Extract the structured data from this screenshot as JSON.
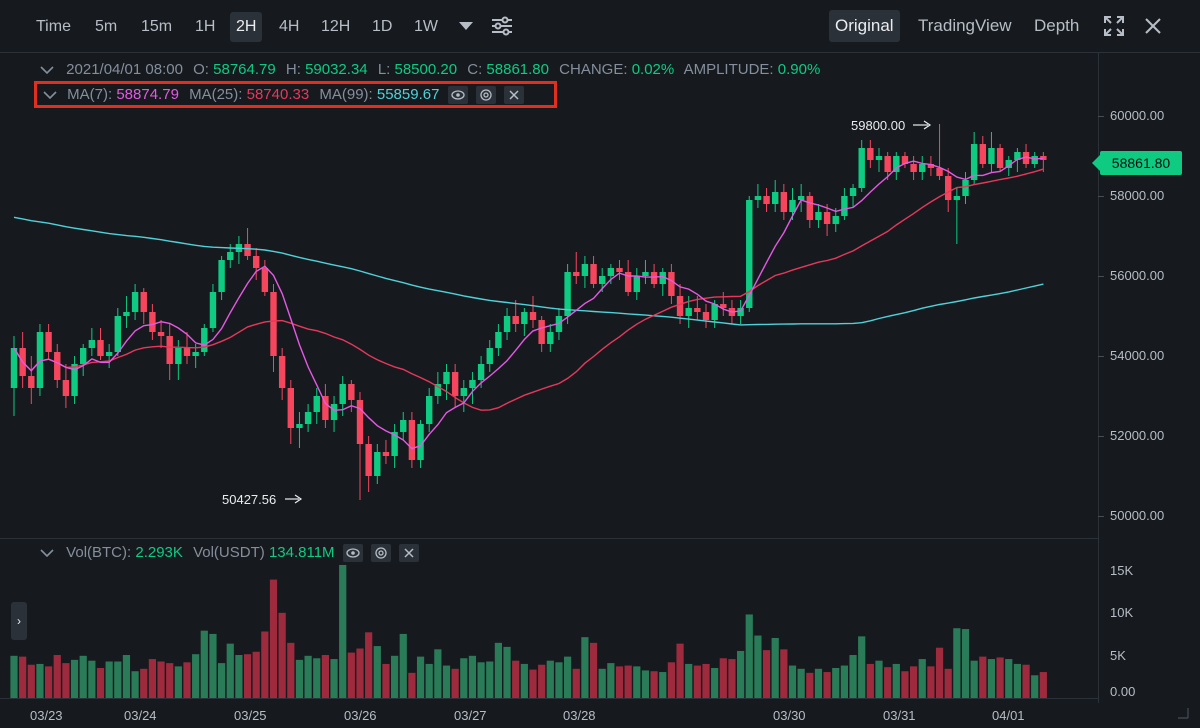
{
  "toolbar": {
    "timeframes": [
      "Time",
      "5m",
      "15m",
      "1H",
      "2H",
      "4H",
      "12H",
      "1D",
      "1W"
    ],
    "active_timeframe": "2H",
    "views": [
      "Original",
      "TradingView",
      "Depth"
    ],
    "active_view": "Original"
  },
  "ohlc": {
    "date": "2021/04/01 08:00",
    "open_label": "O:",
    "open": "58764.79",
    "high_label": "H:",
    "high": "59032.34",
    "low_label": "L:",
    "low": "58500.20",
    "close_label": "C:",
    "close": "58861.80",
    "change_label": "CHANGE:",
    "change": "0.02%",
    "amplitude_label": "AMPLITUDE:",
    "amplitude": "0.90%"
  },
  "ma": {
    "ma7_label": "MA(7):",
    "ma7": "58874.79",
    "ma25_label": "MA(25):",
    "ma25": "58740.33",
    "ma99_label": "MA(99):",
    "ma99": "55859.67"
  },
  "volume": {
    "btc_label": "Vol(BTC):",
    "btc": "2.293K",
    "usdt_label": "Vol(USDT)",
    "usdt": "134.811M"
  },
  "price_axis": [
    "60000.00",
    "58000.00",
    "56000.00",
    "54000.00",
    "52000.00",
    "50000.00"
  ],
  "volume_axis": [
    "15K",
    "10K",
    "5K",
    "0.00"
  ],
  "date_axis": [
    "03/23",
    "03/24",
    "03/25",
    "03/26",
    "03/27",
    "03/28",
    "03/30",
    "03/31",
    "04/01"
  ],
  "last_price": "58861.80",
  "annotations": {
    "high": "59800.00",
    "low": "50427.56"
  },
  "colors": {
    "up": "#0ecb81",
    "down": "#f6465d",
    "ma7": "#e658e4",
    "ma25": "#e8375a",
    "ma99": "#4fd1d9",
    "vol_up": "#2a7c59",
    "vol_down": "#9e2a3e"
  },
  "chart_data": {
    "type": "candlestick",
    "ylim": [
      49500,
      60500
    ],
    "vol_ylim": [
      0,
      18000
    ],
    "candles": [
      [
        53200,
        54500,
        52500,
        54200
      ],
      [
        54200,
        54600,
        53200,
        53500
      ],
      [
        53500,
        54000,
        52800,
        53200
      ],
      [
        53200,
        54800,
        53000,
        54600
      ],
      [
        54600,
        54800,
        53900,
        54100
      ],
      [
        54100,
        54300,
        53200,
        53400
      ],
      [
        53400,
        53800,
        52700,
        53000
      ],
      [
        53000,
        54000,
        52800,
        53800
      ],
      [
        53800,
        54300,
        53500,
        54200
      ],
      [
        54200,
        54700,
        54000,
        54400
      ],
      [
        54400,
        54700,
        53900,
        54000
      ],
      [
        54000,
        54300,
        53700,
        54100
      ],
      [
        54100,
        55200,
        54000,
        55000
      ],
      [
        55000,
        55500,
        54700,
        55100
      ],
      [
        55100,
        55800,
        54900,
        55600
      ],
      [
        55600,
        55700,
        54800,
        55100
      ],
      [
        55100,
        55300,
        54400,
        54600
      ],
      [
        54600,
        54900,
        54200,
        54500
      ],
      [
        54500,
        54800,
        53400,
        53800
      ],
      [
        53800,
        54400,
        53400,
        54200
      ],
      [
        54200,
        54600,
        53800,
        54000
      ],
      [
        54000,
        54300,
        53700,
        54100
      ],
      [
        54100,
        54800,
        54000,
        54700
      ],
      [
        54700,
        55800,
        54600,
        55600
      ],
      [
        55600,
        56500,
        55400,
        56400
      ],
      [
        56400,
        56800,
        56200,
        56600
      ],
      [
        56600,
        57000,
        56300,
        56800
      ],
      [
        56800,
        57200,
        56400,
        56500
      ],
      [
        56500,
        56700,
        55900,
        56200
      ],
      [
        56200,
        56400,
        55500,
        55600
      ],
      [
        55600,
        55800,
        53600,
        54000
      ],
      [
        54000,
        54200,
        52900,
        53200
      ],
      [
        53200,
        53400,
        51800,
        52200
      ],
      [
        52200,
        52600,
        51700,
        52300
      ],
      [
        52300,
        52800,
        52100,
        52600
      ],
      [
        52600,
        53200,
        52300,
        53000
      ],
      [
        53000,
        53300,
        52200,
        52400
      ],
      [
        52400,
        53000,
        52100,
        52800
      ],
      [
        52800,
        53500,
        52500,
        53300
      ],
      [
        53300,
        53400,
        52600,
        52900
      ],
      [
        52900,
        53100,
        50400,
        51800
      ],
      [
        51800,
        52000,
        50600,
        51000
      ],
      [
        51000,
        51800,
        50800,
        51600
      ],
      [
        51600,
        51900,
        51300,
        51500
      ],
      [
        51500,
        52300,
        51200,
        52100
      ],
      [
        52100,
        52600,
        51900,
        52400
      ],
      [
        52400,
        52600,
        51200,
        51400
      ],
      [
        51400,
        52400,
        51200,
        52300
      ],
      [
        52300,
        53200,
        52100,
        53000
      ],
      [
        53000,
        53600,
        52800,
        53300
      ],
      [
        53300,
        53800,
        52900,
        53600
      ],
      [
        53600,
        53800,
        52700,
        53000
      ],
      [
        53000,
        53400,
        52600,
        53200
      ],
      [
        53200,
        53600,
        52800,
        53400
      ],
      [
        53400,
        54000,
        53200,
        53800
      ],
      [
        53800,
        54400,
        53600,
        54200
      ],
      [
        54200,
        54800,
        54000,
        54600
      ],
      [
        54600,
        55200,
        54400,
        55000
      ],
      [
        55000,
        55400,
        54600,
        54800
      ],
      [
        54800,
        55200,
        54500,
        55100
      ],
      [
        55100,
        55500,
        54700,
        54900
      ],
      [
        54900,
        55000,
        54100,
        54300
      ],
      [
        54300,
        54800,
        54100,
        54600
      ],
      [
        54600,
        55200,
        54400,
        55000
      ],
      [
        55000,
        56300,
        54800,
        56100
      ],
      [
        56100,
        56600,
        55800,
        56000
      ],
      [
        56000,
        56500,
        55700,
        56300
      ],
      [
        56300,
        56500,
        55700,
        55800
      ],
      [
        55800,
        56200,
        55600,
        56000
      ],
      [
        56000,
        56300,
        55800,
        56200
      ],
      [
        56200,
        56400,
        55900,
        56100
      ],
      [
        56100,
        56400,
        55500,
        55600
      ],
      [
        55600,
        56200,
        55400,
        56000
      ],
      [
        56000,
        56400,
        55800,
        56100
      ],
      [
        56100,
        56300,
        55700,
        55800
      ],
      [
        55800,
        56200,
        55500,
        56100
      ],
      [
        56100,
        56300,
        55300,
        55500
      ],
      [
        55500,
        55800,
        54800,
        55000
      ],
      [
        55000,
        55500,
        54700,
        55200
      ],
      [
        55200,
        55500,
        54900,
        55100
      ],
      [
        55100,
        55300,
        54700,
        54900
      ],
      [
        54900,
        55400,
        54700,
        55300
      ],
      [
        55300,
        55600,
        55000,
        55200
      ],
      [
        55200,
        55400,
        54800,
        55000
      ],
      [
        55000,
        55400,
        54800,
        55200
      ],
      [
        55200,
        58000,
        55100,
        57900
      ],
      [
        57900,
        58300,
        57700,
        58000
      ],
      [
        58000,
        58200,
        57600,
        57800
      ],
      [
        57800,
        58400,
        57600,
        58100
      ],
      [
        58100,
        58300,
        57400,
        57600
      ],
      [
        57600,
        58200,
        57400,
        57900
      ],
      [
        57900,
        58300,
        57600,
        58000
      ],
      [
        58000,
        58100,
        57200,
        57400
      ],
      [
        57400,
        57800,
        57200,
        57600
      ],
      [
        57600,
        57800,
        57000,
        57300
      ],
      [
        57300,
        57700,
        57100,
        57500
      ],
      [
        57500,
        58200,
        57400,
        58000
      ],
      [
        58000,
        58300,
        57700,
        58200
      ],
      [
        58200,
        59400,
        58100,
        59200
      ],
      [
        59200,
        59400,
        58700,
        58900
      ],
      [
        58900,
        59200,
        58600,
        59000
      ],
      [
        59000,
        59100,
        58400,
        58600
      ],
      [
        58600,
        59100,
        58400,
        59000
      ],
      [
        59000,
        59100,
        58700,
        58800
      ],
      [
        58800,
        59000,
        58400,
        58600
      ],
      [
        58600,
        59000,
        58400,
        58800
      ],
      [
        58800,
        59000,
        58500,
        58700
      ],
      [
        58700,
        59800,
        58400,
        58500
      ],
      [
        58500,
        58700,
        57600,
        57900
      ],
      [
        57900,
        58200,
        56800,
        58000
      ],
      [
        58000,
        58600,
        57800,
        58400
      ],
      [
        58400,
        59600,
        58300,
        59300
      ],
      [
        59300,
        59500,
        58700,
        58800
      ],
      [
        58800,
        59600,
        58600,
        59200
      ],
      [
        59200,
        59300,
        58600,
        58700
      ],
      [
        58700,
        59000,
        58500,
        58900
      ],
      [
        58900,
        59200,
        58600,
        59100
      ],
      [
        59100,
        59300,
        58700,
        58800
      ],
      [
        58800,
        59100,
        58700,
        59000
      ],
      [
        59000,
        59100,
        58600,
        58900
      ]
    ],
    "volumes": [
      5200,
      5100,
      4100,
      4200,
      3900,
      5300,
      4300,
      4700,
      5200,
      4600,
      3700,
      4500,
      4500,
      5300,
      3300,
      3600,
      4800,
      4500,
      4300,
      3900,
      4400,
      5400,
      8300,
      7900,
      4300,
      6700,
      5300,
      5400,
      5700,
      8200,
      14600,
      10500,
      6800,
      4700,
      5200,
      4900,
      5300,
      4800,
      16400,
      5600,
      6100,
      8100,
      6400,
      4200,
      5200,
      7900,
      3100,
      5100,
      4200,
      6000,
      4000,
      3600,
      4900,
      5200,
      4400,
      4500,
      6800,
      6300,
      4600,
      4200,
      3500,
      4100,
      4600,
      4400,
      5100,
      3600,
      7500,
      6800,
      3600,
      4300,
      3900,
      4000,
      3900,
      3400,
      3300,
      3200,
      4400,
      6700,
      4200,
      4000,
      4200,
      3700,
      4900,
      4800,
      5800,
      10300,
      7700,
      5900,
      7400,
      6000,
      4000,
      3600,
      3100,
      3600,
      3200,
      3700,
      4000,
      5300,
      7600,
      4200,
      4600,
      3800,
      4200,
      3300,
      3900,
      4800,
      3900,
      6200,
      3600,
      8600,
      8500,
      4600,
      5100,
      4800,
      5000,
      4800,
      4200,
      4100,
      2800,
      3200
    ],
    "ma7": [],
    "ma25": [],
    "ma99": []
  }
}
